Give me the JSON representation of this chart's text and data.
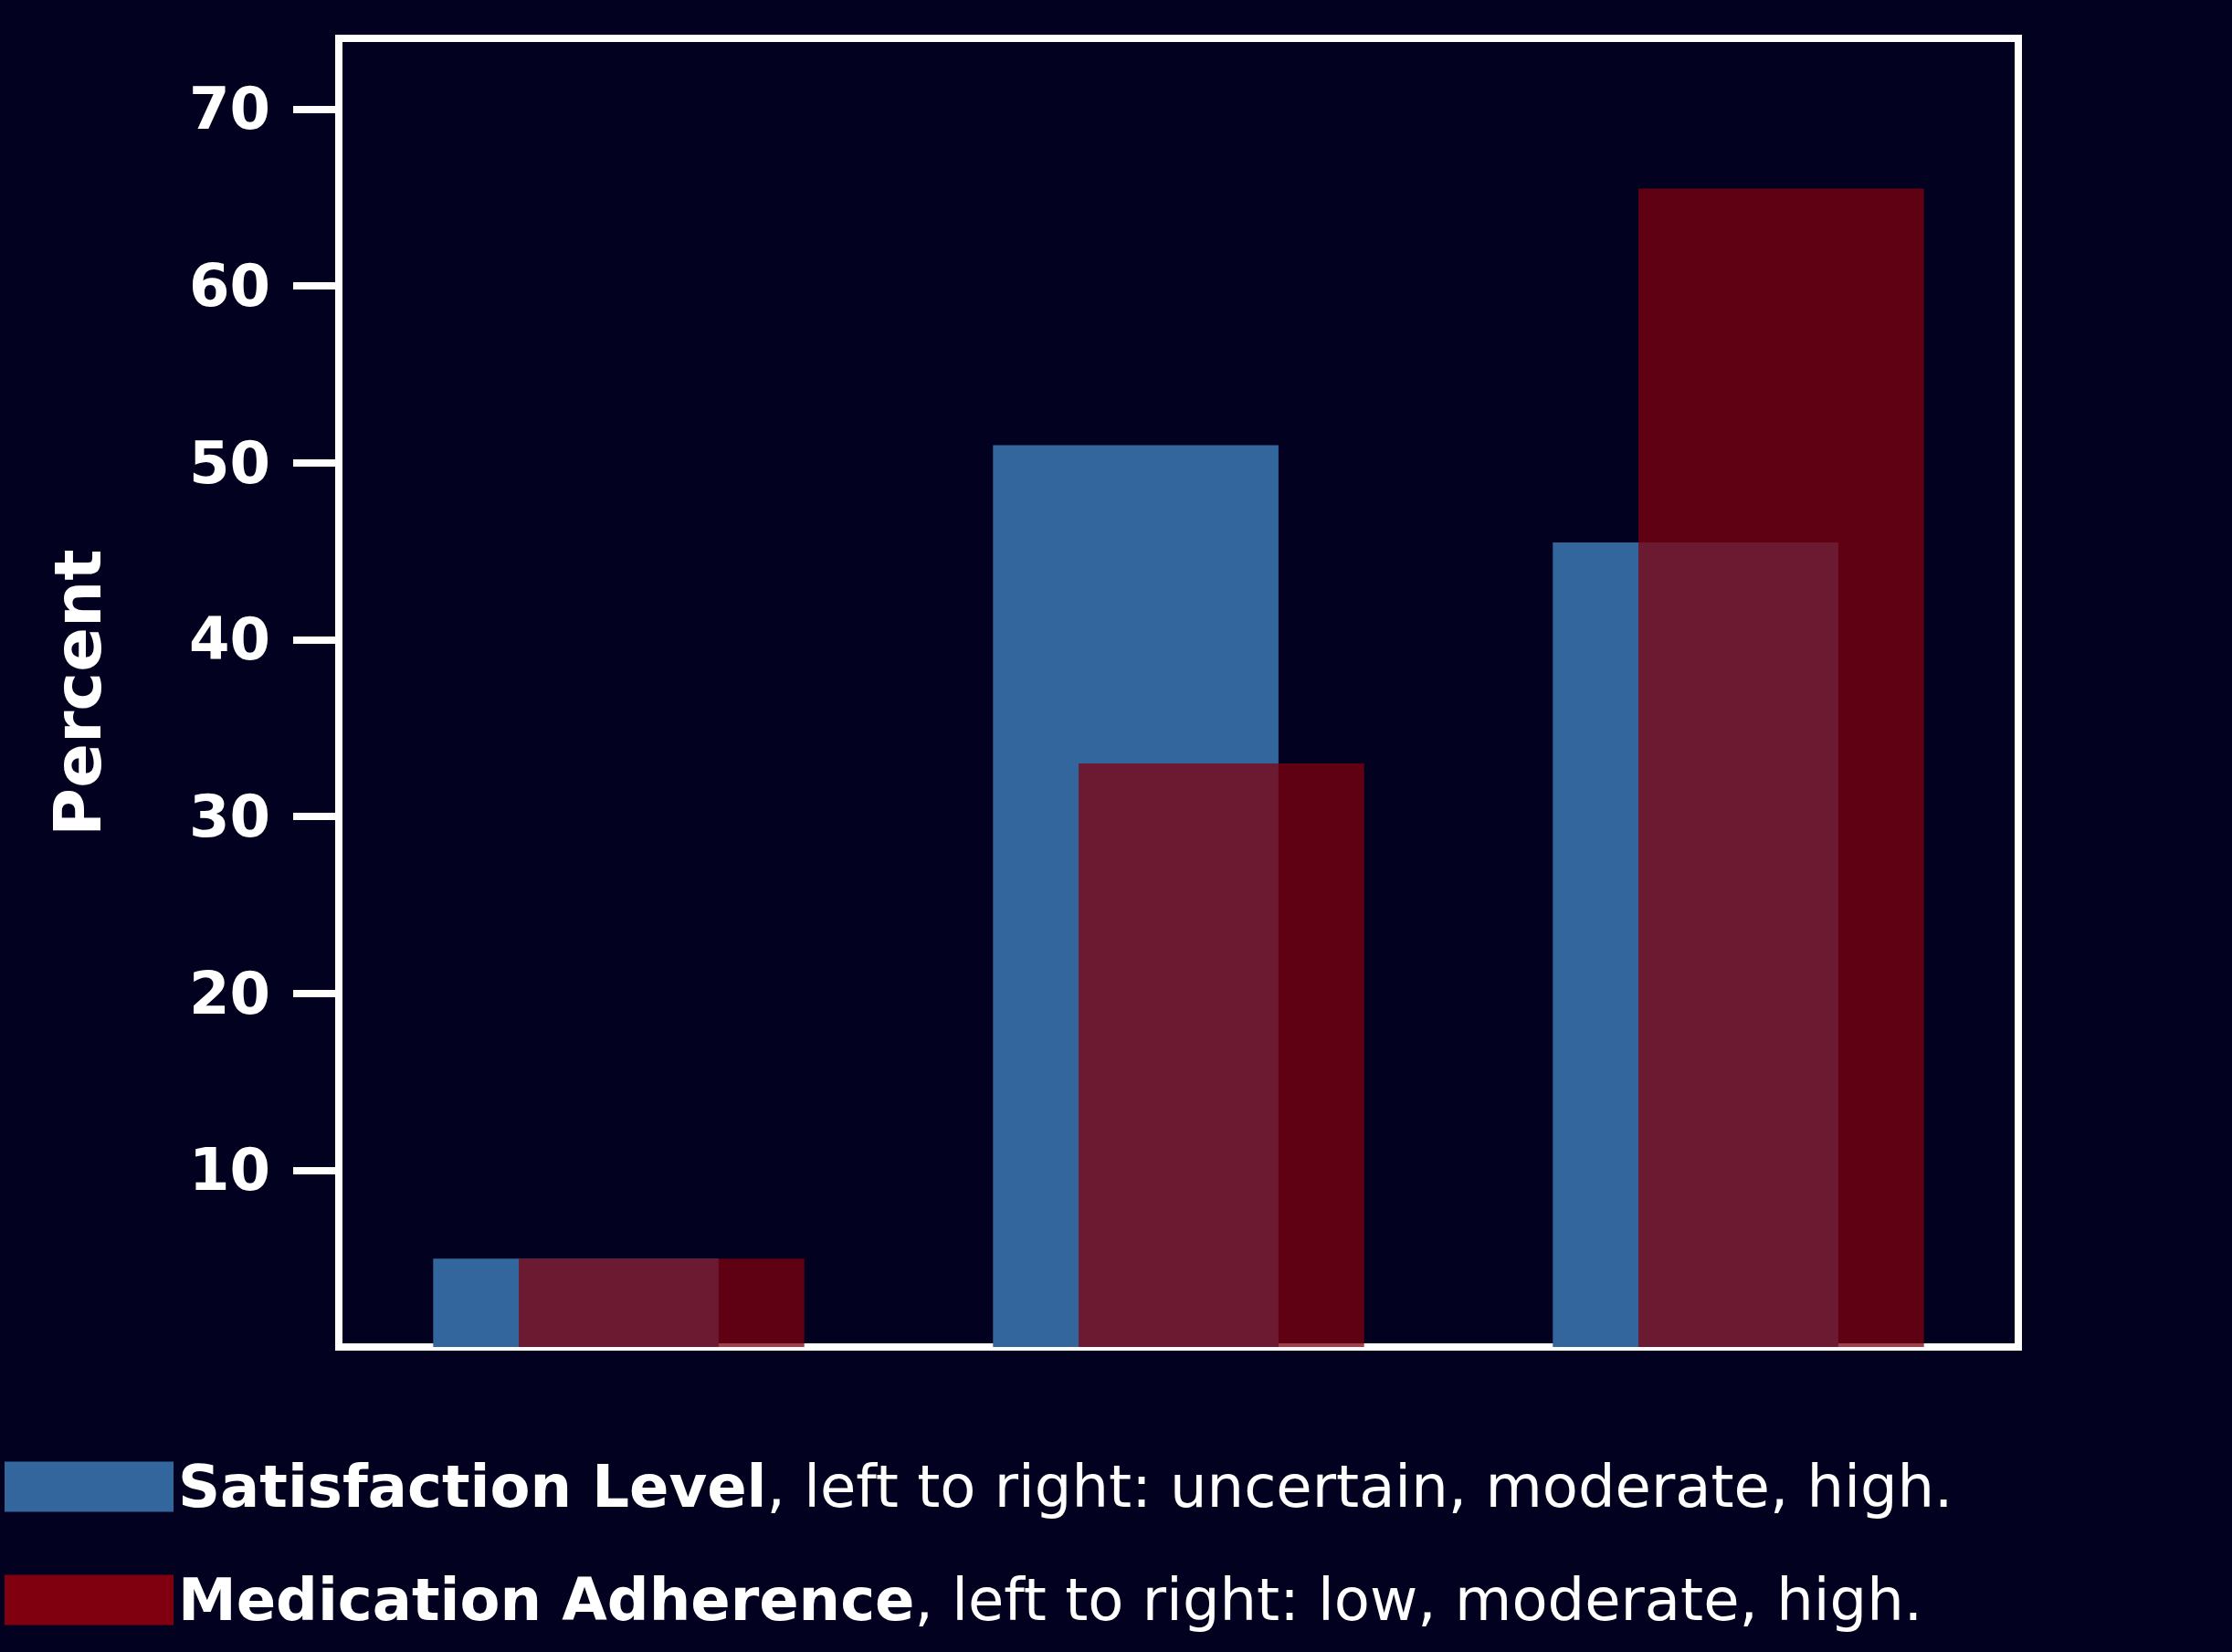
{
  "chart_data": {
    "type": "bar",
    "ylabel": "Percent",
    "categories": [
      null,
      null,
      null
    ],
    "series": [
      {
        "name": "Satisfaction Level, left to right: uncertain, moderate, high.",
        "color": "#33669c",
        "values": [
          5,
          51,
          45.5
        ]
      },
      {
        "name": "Medication Adherence, left to right: low, moderate, high.",
        "color": "#80000f",
        "values": [
          5,
          33,
          65.5
        ]
      }
    ],
    "ylim": [
      0,
      74
    ],
    "yticks": [
      10,
      20,
      30,
      40,
      50,
      60,
      70
    ],
    "grid": false,
    "legend": "bottom"
  }
}
